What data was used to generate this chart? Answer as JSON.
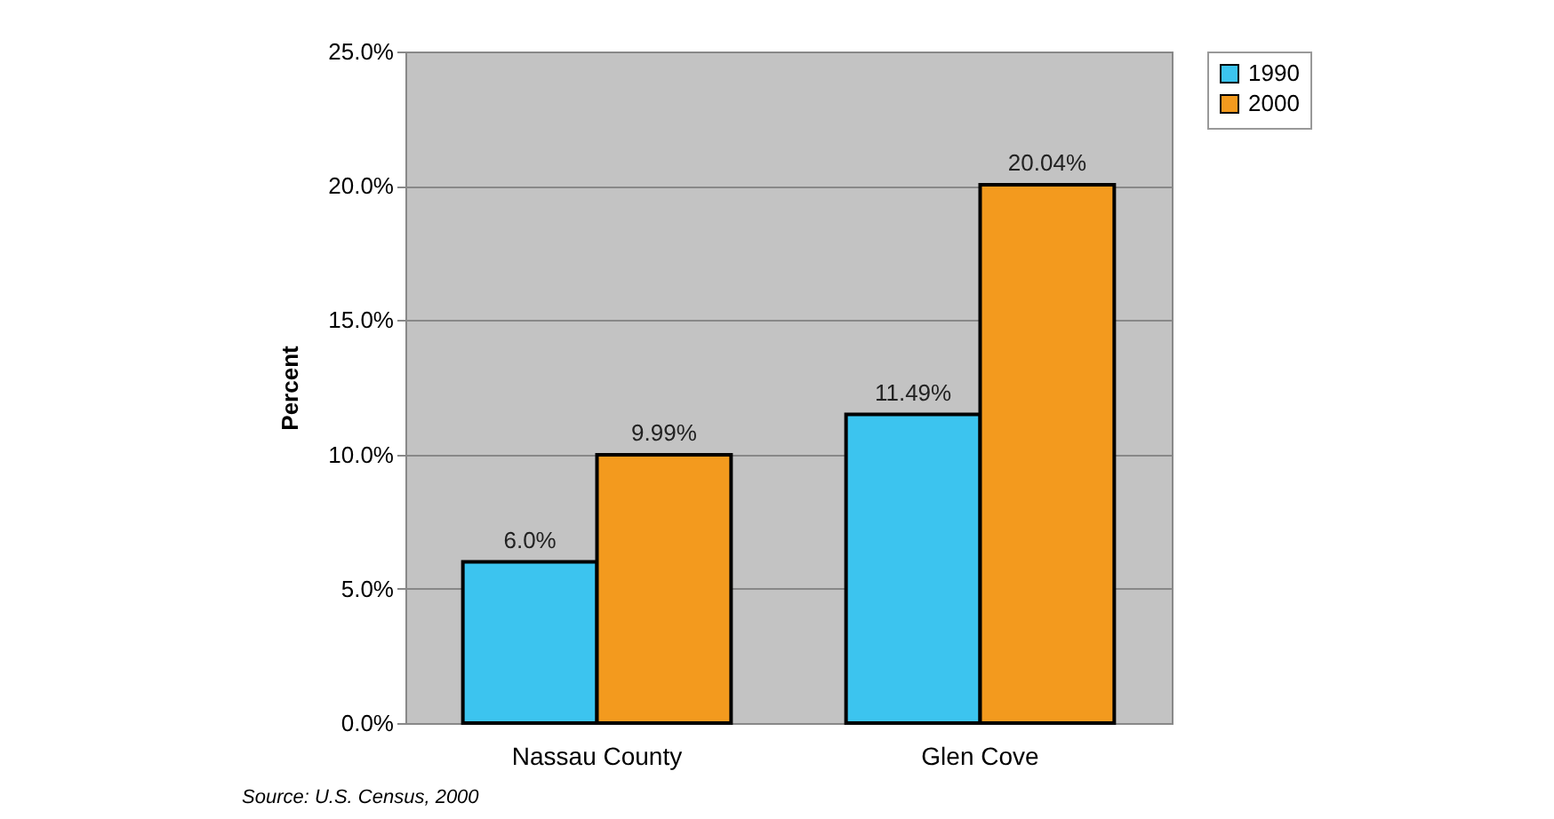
{
  "chart_data": {
    "type": "bar",
    "ylabel": "Percent",
    "categories": [
      "Nassau County",
      "Glen Cove"
    ],
    "series": [
      {
        "name": "1990",
        "color": "#3cc4ef",
        "values": [
          6.0,
          11.49
        ],
        "value_labels": [
          "6.0%",
          "11.49%"
        ]
      },
      {
        "name": "2000",
        "color": "#f39a1e",
        "values": [
          9.99,
          20.04
        ],
        "value_labels": [
          "9.99%",
          "20.04%"
        ]
      }
    ],
    "ylim": [
      0,
      25
    ],
    "yticks": [
      {
        "value": 0,
        "label": "0.0%"
      },
      {
        "value": 5,
        "label": "5.0%"
      },
      {
        "value": 10,
        "label": "10.0%"
      },
      {
        "value": 15,
        "label": "15.0%"
      },
      {
        "value": 20,
        "label": "20.0%"
      },
      {
        "value": 25,
        "label": "25.0%"
      }
    ],
    "grid": "y",
    "legend": "right",
    "annotations": [
      "Source: U.S. Census, 2000"
    ]
  }
}
